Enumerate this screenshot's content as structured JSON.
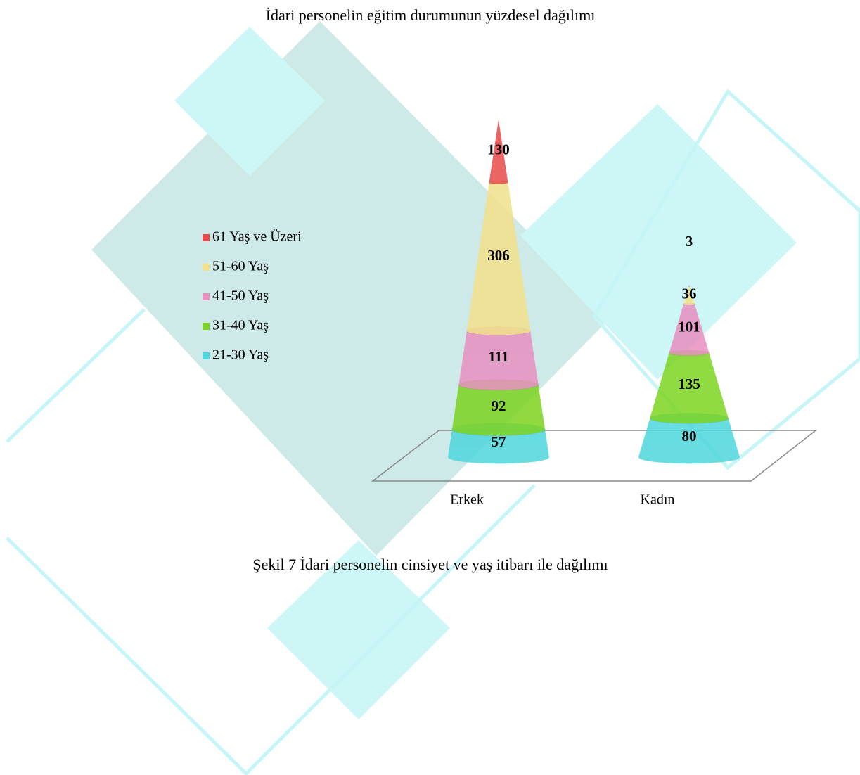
{
  "document": {
    "text_above": "İdari personelin eğitim durumunun yüzdesel dağılımı",
    "caption": "Şekil 7 İdari personelin cinsiyet ve yaş itibarı ile dağılımı"
  },
  "chart_data": {
    "type": "cone",
    "categories": [
      "Erkek",
      "Kadın"
    ],
    "series": [
      {
        "name": "21-30 Yaş",
        "color": "#4dd6dc",
        "values": [
          57,
          80
        ]
      },
      {
        "name": "31-40 Yaş",
        "color": "#7dd321",
        "values": [
          92,
          135
        ]
      },
      {
        "name": "41-50 Yaş",
        "color": "#e88fc0",
        "values": [
          111,
          101
        ]
      },
      {
        "name": "51-60 Yaş",
        "color": "#f2e08a",
        "values": [
          306,
          36
        ]
      },
      {
        "name": "61 Yaş ve Üzeri",
        "color": "#e84a4a",
        "values": [
          130,
          3
        ]
      }
    ],
    "legend": "left"
  }
}
